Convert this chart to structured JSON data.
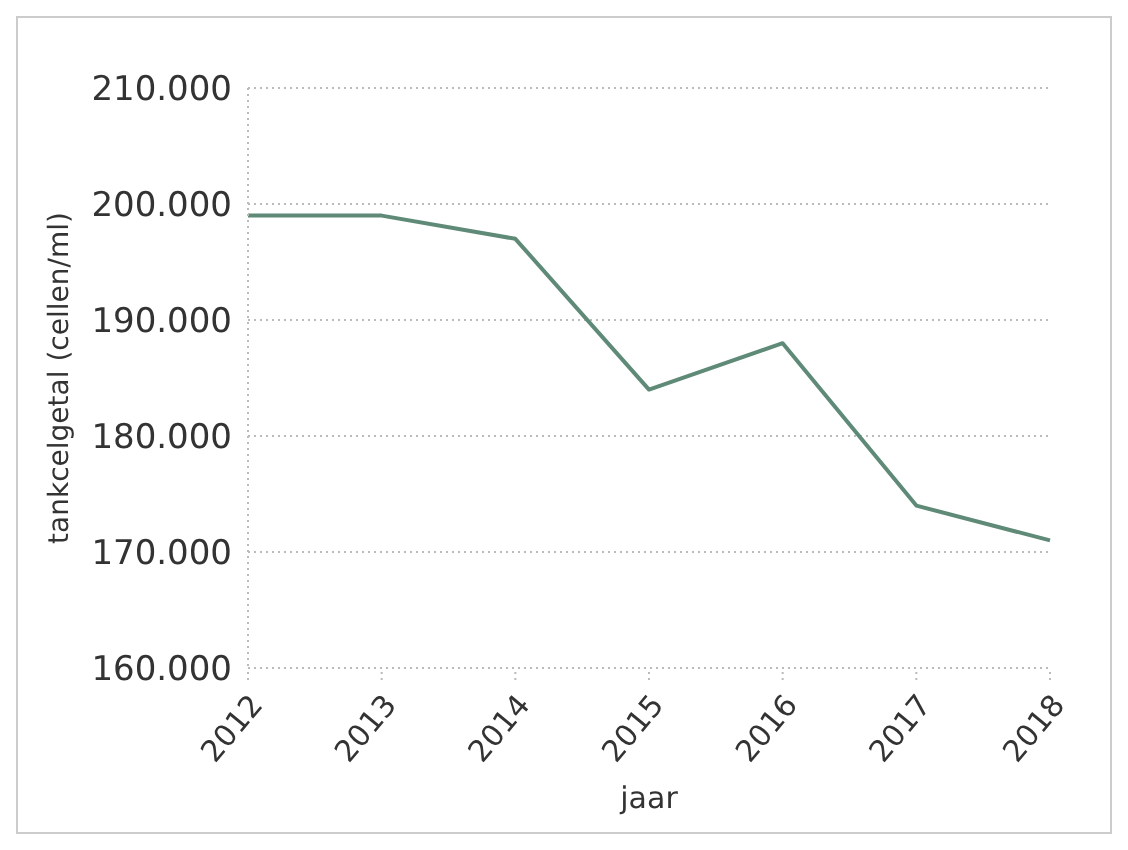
{
  "chart_data": {
    "type": "line",
    "xlabel": "jaar",
    "ylabel": "tankcelgetal (cellen/ml)",
    "categories": [
      "2012",
      "2013",
      "2014",
      "2015",
      "2016",
      "2017",
      "2018"
    ],
    "series": [
      {
        "color": "#5f8a78",
        "values": [
          199000,
          199000,
          197000,
          184000,
          188000,
          174000,
          171000
        ]
      }
    ],
    "ylim": [
      160000,
      210000
    ],
    "yticks": [
      {
        "value": 160000,
        "label": "160.000"
      },
      {
        "value": 170000,
        "label": "170.000"
      },
      {
        "value": 180000,
        "label": "180.000"
      },
      {
        "value": 190000,
        "label": "190.000"
      },
      {
        "value": 200000,
        "label": "200.000"
      },
      {
        "value": 210000,
        "label": "210.000"
      }
    ],
    "grid": "y",
    "marker": "none",
    "line_style": "solid",
    "legend": false
  }
}
